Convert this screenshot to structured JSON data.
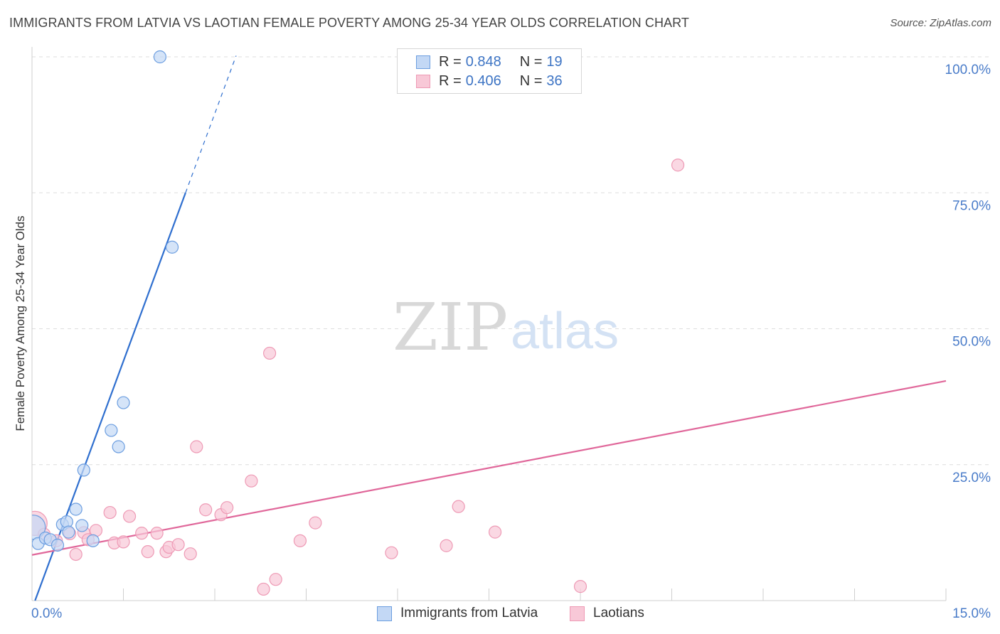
{
  "header": {
    "title": "IMMIGRANTS FROM LATVIA VS LAOTIAN FEMALE POVERTY AMONG 25-34 YEAR OLDS CORRELATION CHART",
    "source": "Source: ZipAtlas.com"
  },
  "watermark": {
    "zip": "ZIP",
    "atlas": "atlas"
  },
  "legend": {
    "series1": {
      "r_label": "R = ",
      "r_value": "0.848",
      "n_label": "N = ",
      "n_value": "19"
    },
    "series2": {
      "r_label": "R = ",
      "r_value": "0.406",
      "n_label": "N = ",
      "n_value": "36"
    }
  },
  "colors": {
    "blue_fill": "#c3d8f5",
    "blue_stroke": "#6c9ee0",
    "blue_line": "#2f6fcf",
    "pink_fill": "#f8c8d7",
    "pink_stroke": "#ee9ab5",
    "pink_line": "#e0679a",
    "axis_text": "#4a7cc9",
    "grid": "#dddddd"
  },
  "chart_data": {
    "type": "scatter",
    "title": "IMMIGRANTS FROM LATVIA VS LAOTIAN FEMALE POVERTY AMONG 25-34 YEAR OLDS CORRELATION CHART",
    "xlabel": "",
    "ylabel": "Female Poverty Among 25-34 Year Olds",
    "xlim": [
      0,
      15
    ],
    "ylim": [
      0,
      100
    ],
    "x_tick_labels": [
      "0.0%",
      "15.0%"
    ],
    "y_ticks": [
      25,
      50,
      75,
      100
    ],
    "y_tick_labels": [
      "25.0%",
      "50.0%",
      "75.0%",
      "100.0%"
    ],
    "grid": true,
    "series": [
      {
        "name": "Immigrants from Latvia",
        "color": "blue",
        "R": 0.848,
        "N": 19,
        "points": [
          {
            "x": 0.02,
            "y": 13.5,
            "s": 2
          },
          {
            "x": 0.1,
            "y": 10.5,
            "s": 1
          },
          {
            "x": 0.22,
            "y": 11.5,
            "s": 1
          },
          {
            "x": 0.3,
            "y": 11.2,
            "s": 1
          },
          {
            "x": 0.42,
            "y": 10.2,
            "s": 1
          },
          {
            "x": 0.5,
            "y": 14.0,
            "s": 1
          },
          {
            "x": 0.57,
            "y": 14.5,
            "s": 1
          },
          {
            "x": 0.6,
            "y": 12.6,
            "s": 1
          },
          {
            "x": 0.72,
            "y": 16.8,
            "s": 1
          },
          {
            "x": 0.82,
            "y": 13.8,
            "s": 1
          },
          {
            "x": 0.85,
            "y": 24.0,
            "s": 1
          },
          {
            "x": 1.0,
            "y": 11.0,
            "s": 1
          },
          {
            "x": 1.3,
            "y": 31.3,
            "s": 1
          },
          {
            "x": 1.42,
            "y": 28.3,
            "s": 1
          },
          {
            "x": 1.5,
            "y": 36.4,
            "s": 1
          },
          {
            "x": 2.1,
            "y": 100.0,
            "s": 1
          },
          {
            "x": 2.3,
            "y": 65.0,
            "s": 1
          }
        ],
        "trend": {
          "x0": 0.05,
          "y0": 0.0,
          "x1": 2.52,
          "y1": 75.0,
          "dash_to_x": 3.35,
          "dash_to_y": 100.2
        }
      },
      {
        "name": "Laotians",
        "color": "pink",
        "R": 0.406,
        "N": 36,
        "points": [
          {
            "x": 0.05,
            "y": 14.2,
            "s": 2
          },
          {
            "x": 0.2,
            "y": 12.2,
            "s": 1
          },
          {
            "x": 0.4,
            "y": 11.0,
            "s": 1
          },
          {
            "x": 0.62,
            "y": 12.3,
            "s": 1
          },
          {
            "x": 0.72,
            "y": 8.5,
            "s": 1
          },
          {
            "x": 0.85,
            "y": 12.5,
            "s": 1
          },
          {
            "x": 0.92,
            "y": 11.2,
            "s": 1
          },
          {
            "x": 1.05,
            "y": 12.9,
            "s": 1
          },
          {
            "x": 1.28,
            "y": 16.2,
            "s": 1
          },
          {
            "x": 1.35,
            "y": 10.6,
            "s": 1
          },
          {
            "x": 1.5,
            "y": 10.8,
            "s": 1
          },
          {
            "x": 1.6,
            "y": 15.5,
            "s": 1
          },
          {
            "x": 1.8,
            "y": 12.4,
            "s": 1
          },
          {
            "x": 1.9,
            "y": 9.0,
            "s": 1
          },
          {
            "x": 2.05,
            "y": 12.4,
            "s": 1
          },
          {
            "x": 2.2,
            "y": 9.0,
            "s": 1
          },
          {
            "x": 2.25,
            "y": 9.8,
            "s": 1
          },
          {
            "x": 2.4,
            "y": 10.3,
            "s": 1
          },
          {
            "x": 2.6,
            "y": 8.6,
            "s": 1
          },
          {
            "x": 2.7,
            "y": 28.3,
            "s": 1
          },
          {
            "x": 2.85,
            "y": 16.7,
            "s": 1
          },
          {
            "x": 3.1,
            "y": 15.8,
            "s": 1
          },
          {
            "x": 3.2,
            "y": 17.1,
            "s": 1
          },
          {
            "x": 3.6,
            "y": 22.0,
            "s": 1
          },
          {
            "x": 3.8,
            "y": 2.1,
            "s": 1
          },
          {
            "x": 3.9,
            "y": 45.5,
            "s": 1
          },
          {
            "x": 4.0,
            "y": 3.9,
            "s": 1
          },
          {
            "x": 4.4,
            "y": 11.0,
            "s": 1
          },
          {
            "x": 4.65,
            "y": 14.3,
            "s": 1
          },
          {
            "x": 5.9,
            "y": 8.8,
            "s": 1
          },
          {
            "x": 6.8,
            "y": 10.1,
            "s": 1
          },
          {
            "x": 7.0,
            "y": 17.3,
            "s": 1
          },
          {
            "x": 7.6,
            "y": 12.6,
            "s": 1
          },
          {
            "x": 9.0,
            "y": 2.6,
            "s": 1
          },
          {
            "x": 10.6,
            "y": 80.1,
            "s": 1
          }
        ],
        "trend": {
          "x0": 0.0,
          "y0": 8.4,
          "x1": 15.0,
          "y1": 40.4
        }
      }
    ]
  },
  "bottom_legend": {
    "item1": "Immigrants from Latvia",
    "item2": "Laotians"
  }
}
